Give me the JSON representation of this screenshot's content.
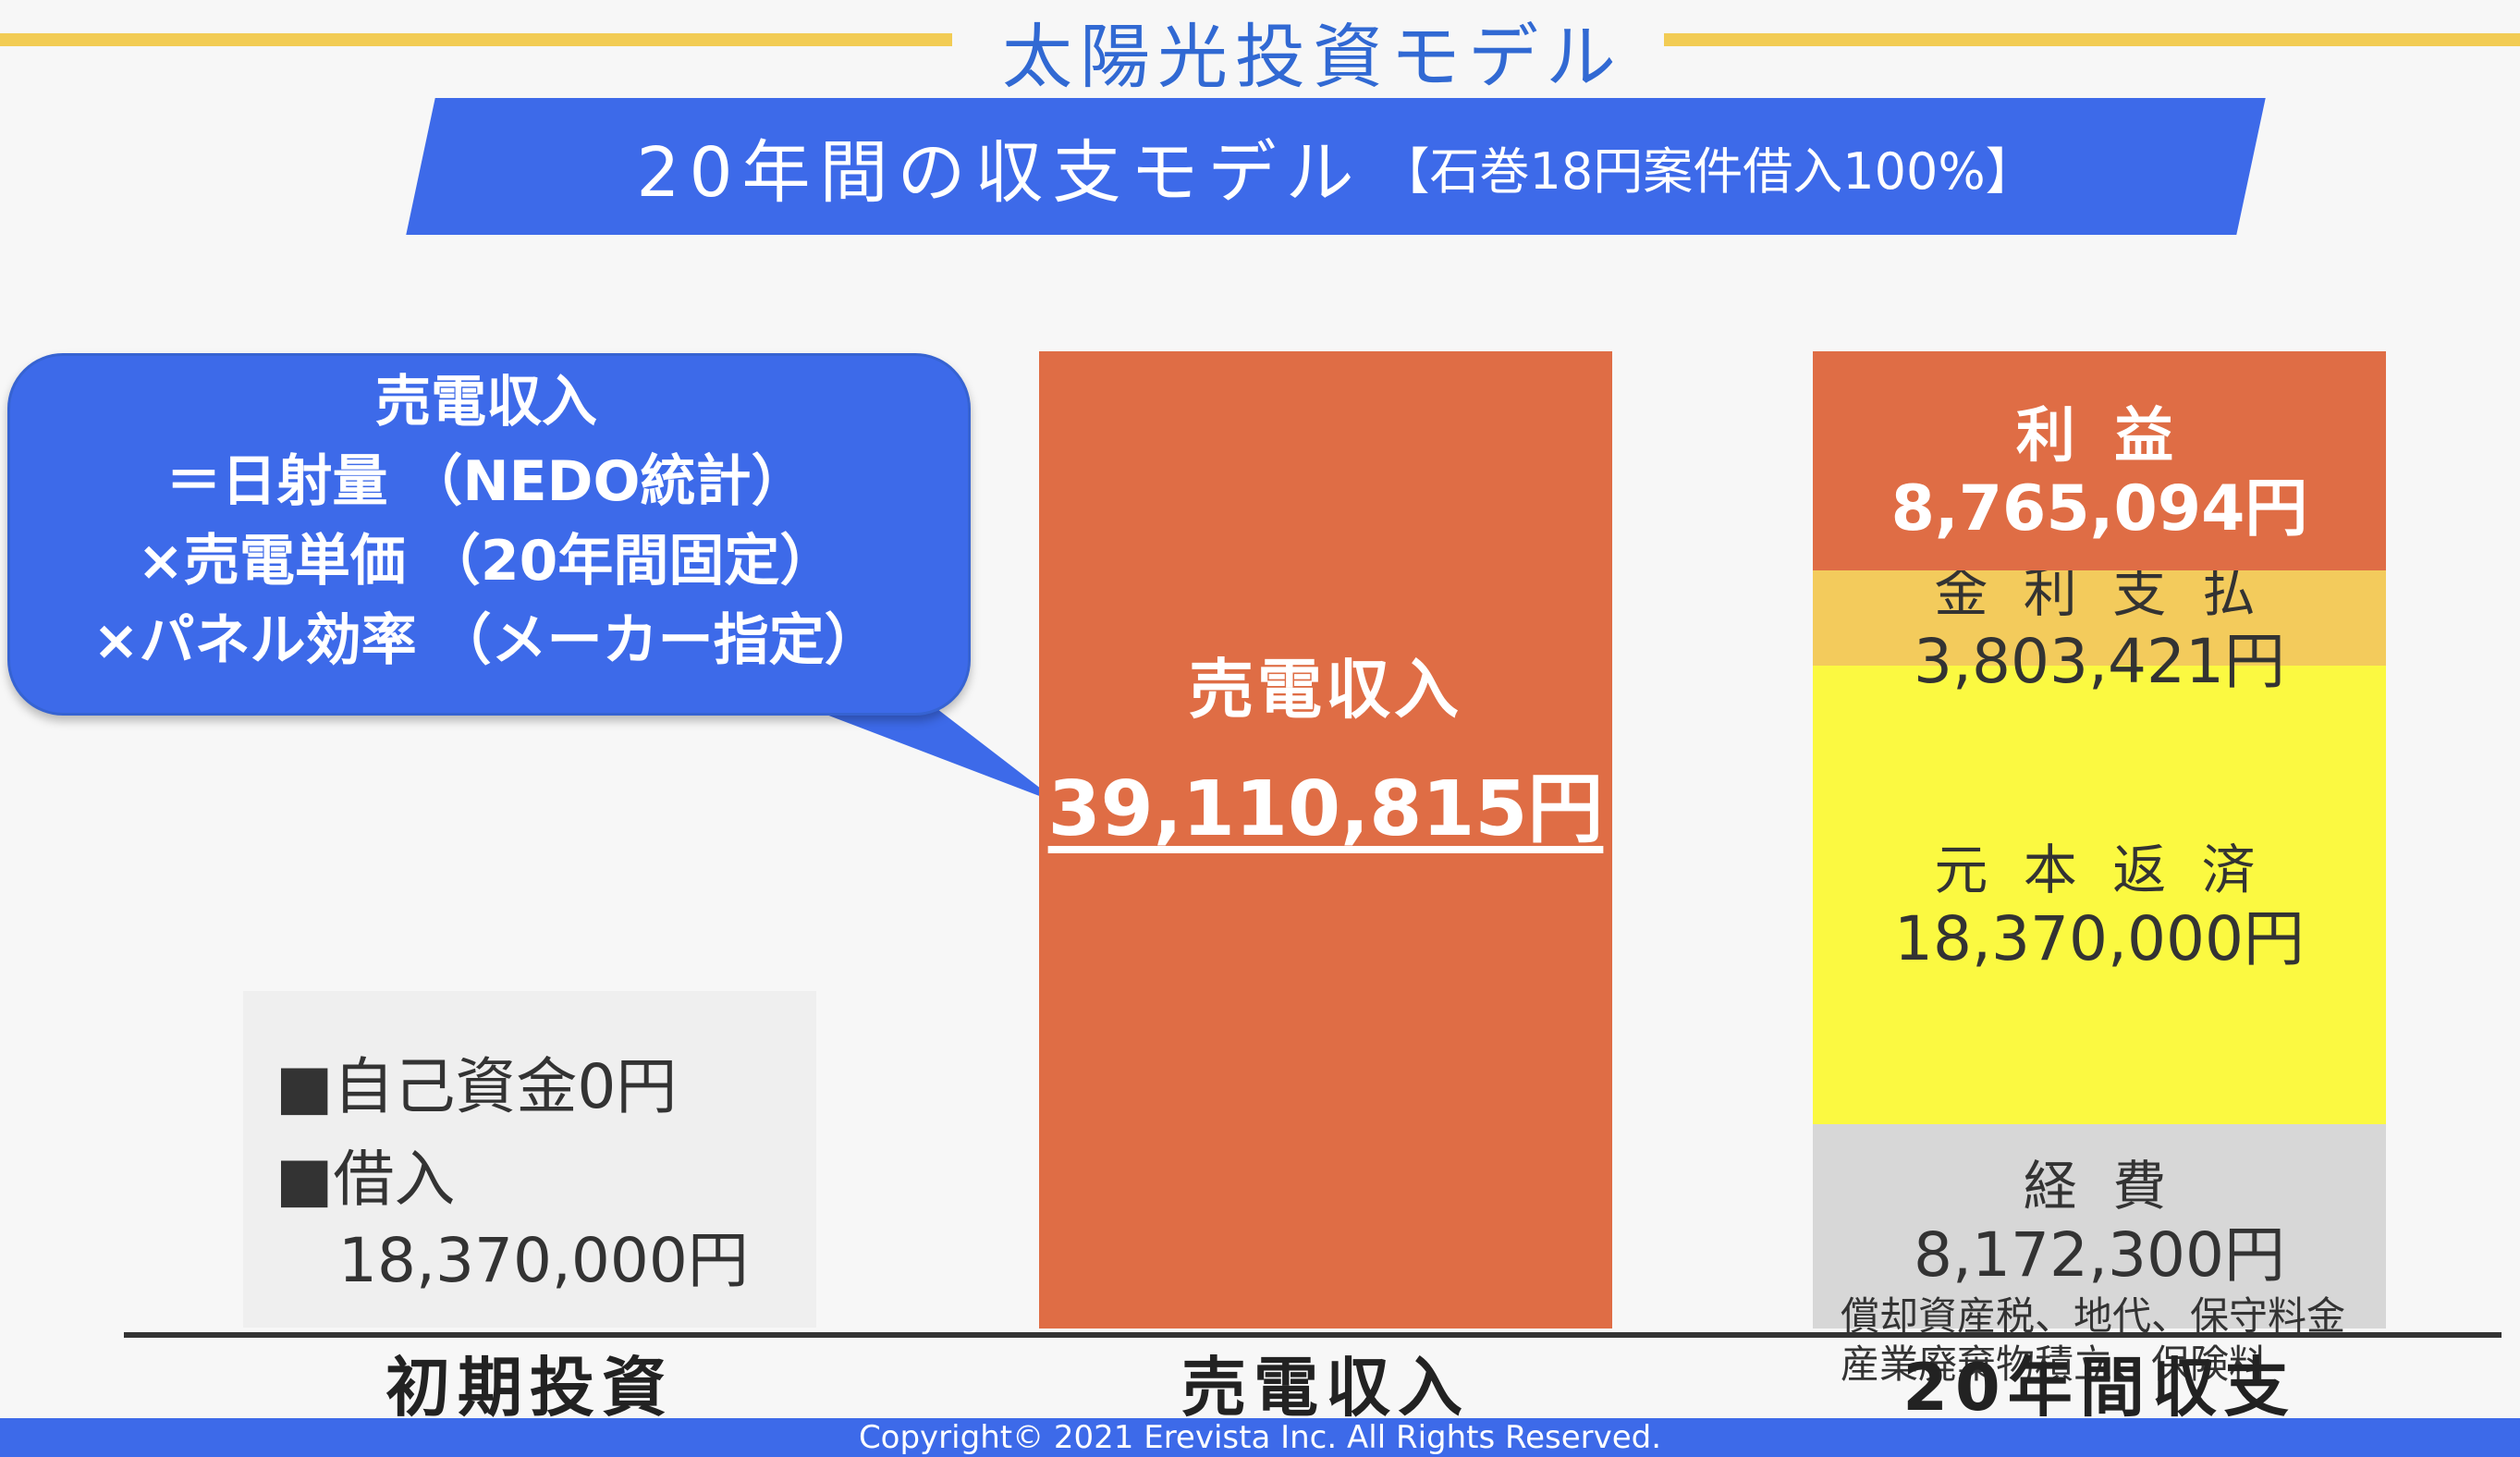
{
  "header": {
    "title": "太陽光投資モデル",
    "subtitle_main": "20年間の収支モデル",
    "subtitle_sub": "【石巻18円案件借入100%】"
  },
  "callout": {
    "lines": [
      "売電収入",
      "＝日射量 （NEDO統計）",
      "×売電単価 （20年間固定）",
      "×パネル効率 （メーカー指定）"
    ]
  },
  "investment": {
    "line1": "■自己資金0円",
    "line2": "■借入",
    "line3": "18,370,000円"
  },
  "chart_data": {
    "type": "bar",
    "stacked": true,
    "categories": [
      "初期投資",
      "売電収入",
      "20年間収支"
    ],
    "series": [
      {
        "name": "売電収入",
        "category": "売電収入",
        "value": 39110815,
        "label": "売電収入",
        "value_label": "39,110,815円",
        "color": "#df6d45"
      },
      {
        "name": "経費",
        "category": "20年間収支",
        "value": 8172300,
        "label": "経 費",
        "value_label": "8,172,300円",
        "note1": "償却資産税、地代、保守料金",
        "note2": "産業廃棄物積立、保険料",
        "color": "#d7d7d7"
      },
      {
        "name": "元本返済",
        "category": "20年間収支",
        "value": 18370000,
        "label": "元 本 返 済",
        "value_label": "18,370,000円",
        "color": "#fbf941"
      },
      {
        "name": "金利支払",
        "category": "20年間収支",
        "value": 3803421,
        "label": "金 利 支 払",
        "value_label": "3,803,421円",
        "color": "#f3cb5c"
      },
      {
        "name": "利益",
        "category": "20年間収支",
        "value": 8765094,
        "label": "利 益",
        "value_label": "8,765,094円",
        "color": "#df6d45"
      }
    ]
  },
  "colors": {
    "accent_blue": "#3d6ae9",
    "title_blue": "#3169d3",
    "title_line_yellow": "#f2cc54"
  },
  "footer": {
    "copyright": "Copyright© 2021 Erevista Inc. All Rights Reserved."
  }
}
